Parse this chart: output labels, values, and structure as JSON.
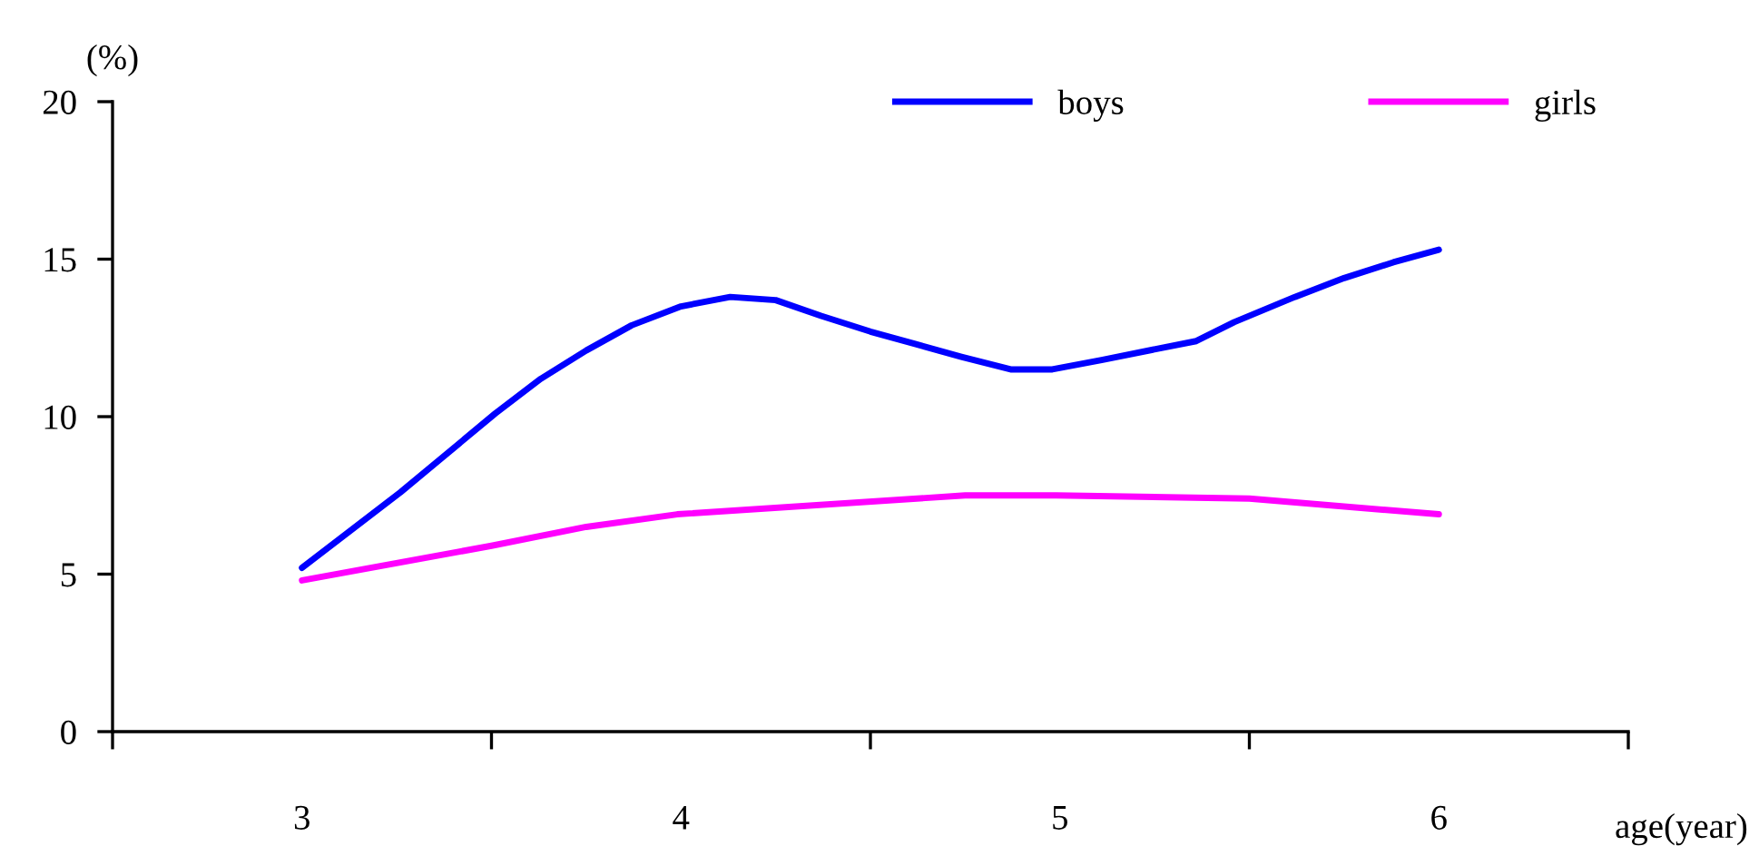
{
  "chart_data": {
    "type": "line",
    "ylabel": "(%)",
    "xlabel": "age(year)",
    "xlim": [
      2.5,
      6.5
    ],
    "xticks": [
      {
        "value": 2.5,
        "label": null
      },
      {
        "value": 3,
        "label": "3"
      },
      {
        "value": 3.5,
        "label": null
      },
      {
        "value": 4,
        "label": "4"
      },
      {
        "value": 4.5,
        "label": null
      },
      {
        "value": 5,
        "label": "5"
      },
      {
        "value": 5.5,
        "label": null
      },
      {
        "value": 6,
        "label": "6"
      },
      {
        "value": 6.5,
        "label": null
      }
    ],
    "ylim": [
      0,
      20
    ],
    "yticks": [
      0,
      5,
      10,
      15,
      20
    ],
    "grid": false,
    "legend": "top right",
    "marker": "none",
    "line_style": "solid",
    "series": [
      {
        "name": "boys",
        "color": "#0000ff",
        "x": [
          3.0,
          3.26,
          3.51,
          3.63,
          3.75,
          3.87,
          4.0,
          4.13,
          4.25,
          4.37,
          4.5,
          4.62,
          4.74,
          4.87,
          4.98,
          5.11,
          5.36,
          5.46,
          5.62,
          5.75,
          5.88,
          6.0
        ],
        "values": [
          5.2,
          7.6,
          10.1,
          11.2,
          12.1,
          12.9,
          13.5,
          13.8,
          13.7,
          13.2,
          12.7,
          12.3,
          11.9,
          11.5,
          11.5,
          11.8,
          12.4,
          13.0,
          13.8,
          14.4,
          14.9,
          15.3
        ]
      },
      {
        "name": "girls",
        "color": "#ff00ff",
        "x": [
          3.0,
          3.5,
          3.75,
          3.99,
          4.75,
          4.99,
          5.5,
          6.0
        ],
        "values": [
          4.8,
          5.9,
          6.5,
          6.9,
          7.5,
          7.5,
          7.4,
          6.9
        ]
      }
    ]
  }
}
